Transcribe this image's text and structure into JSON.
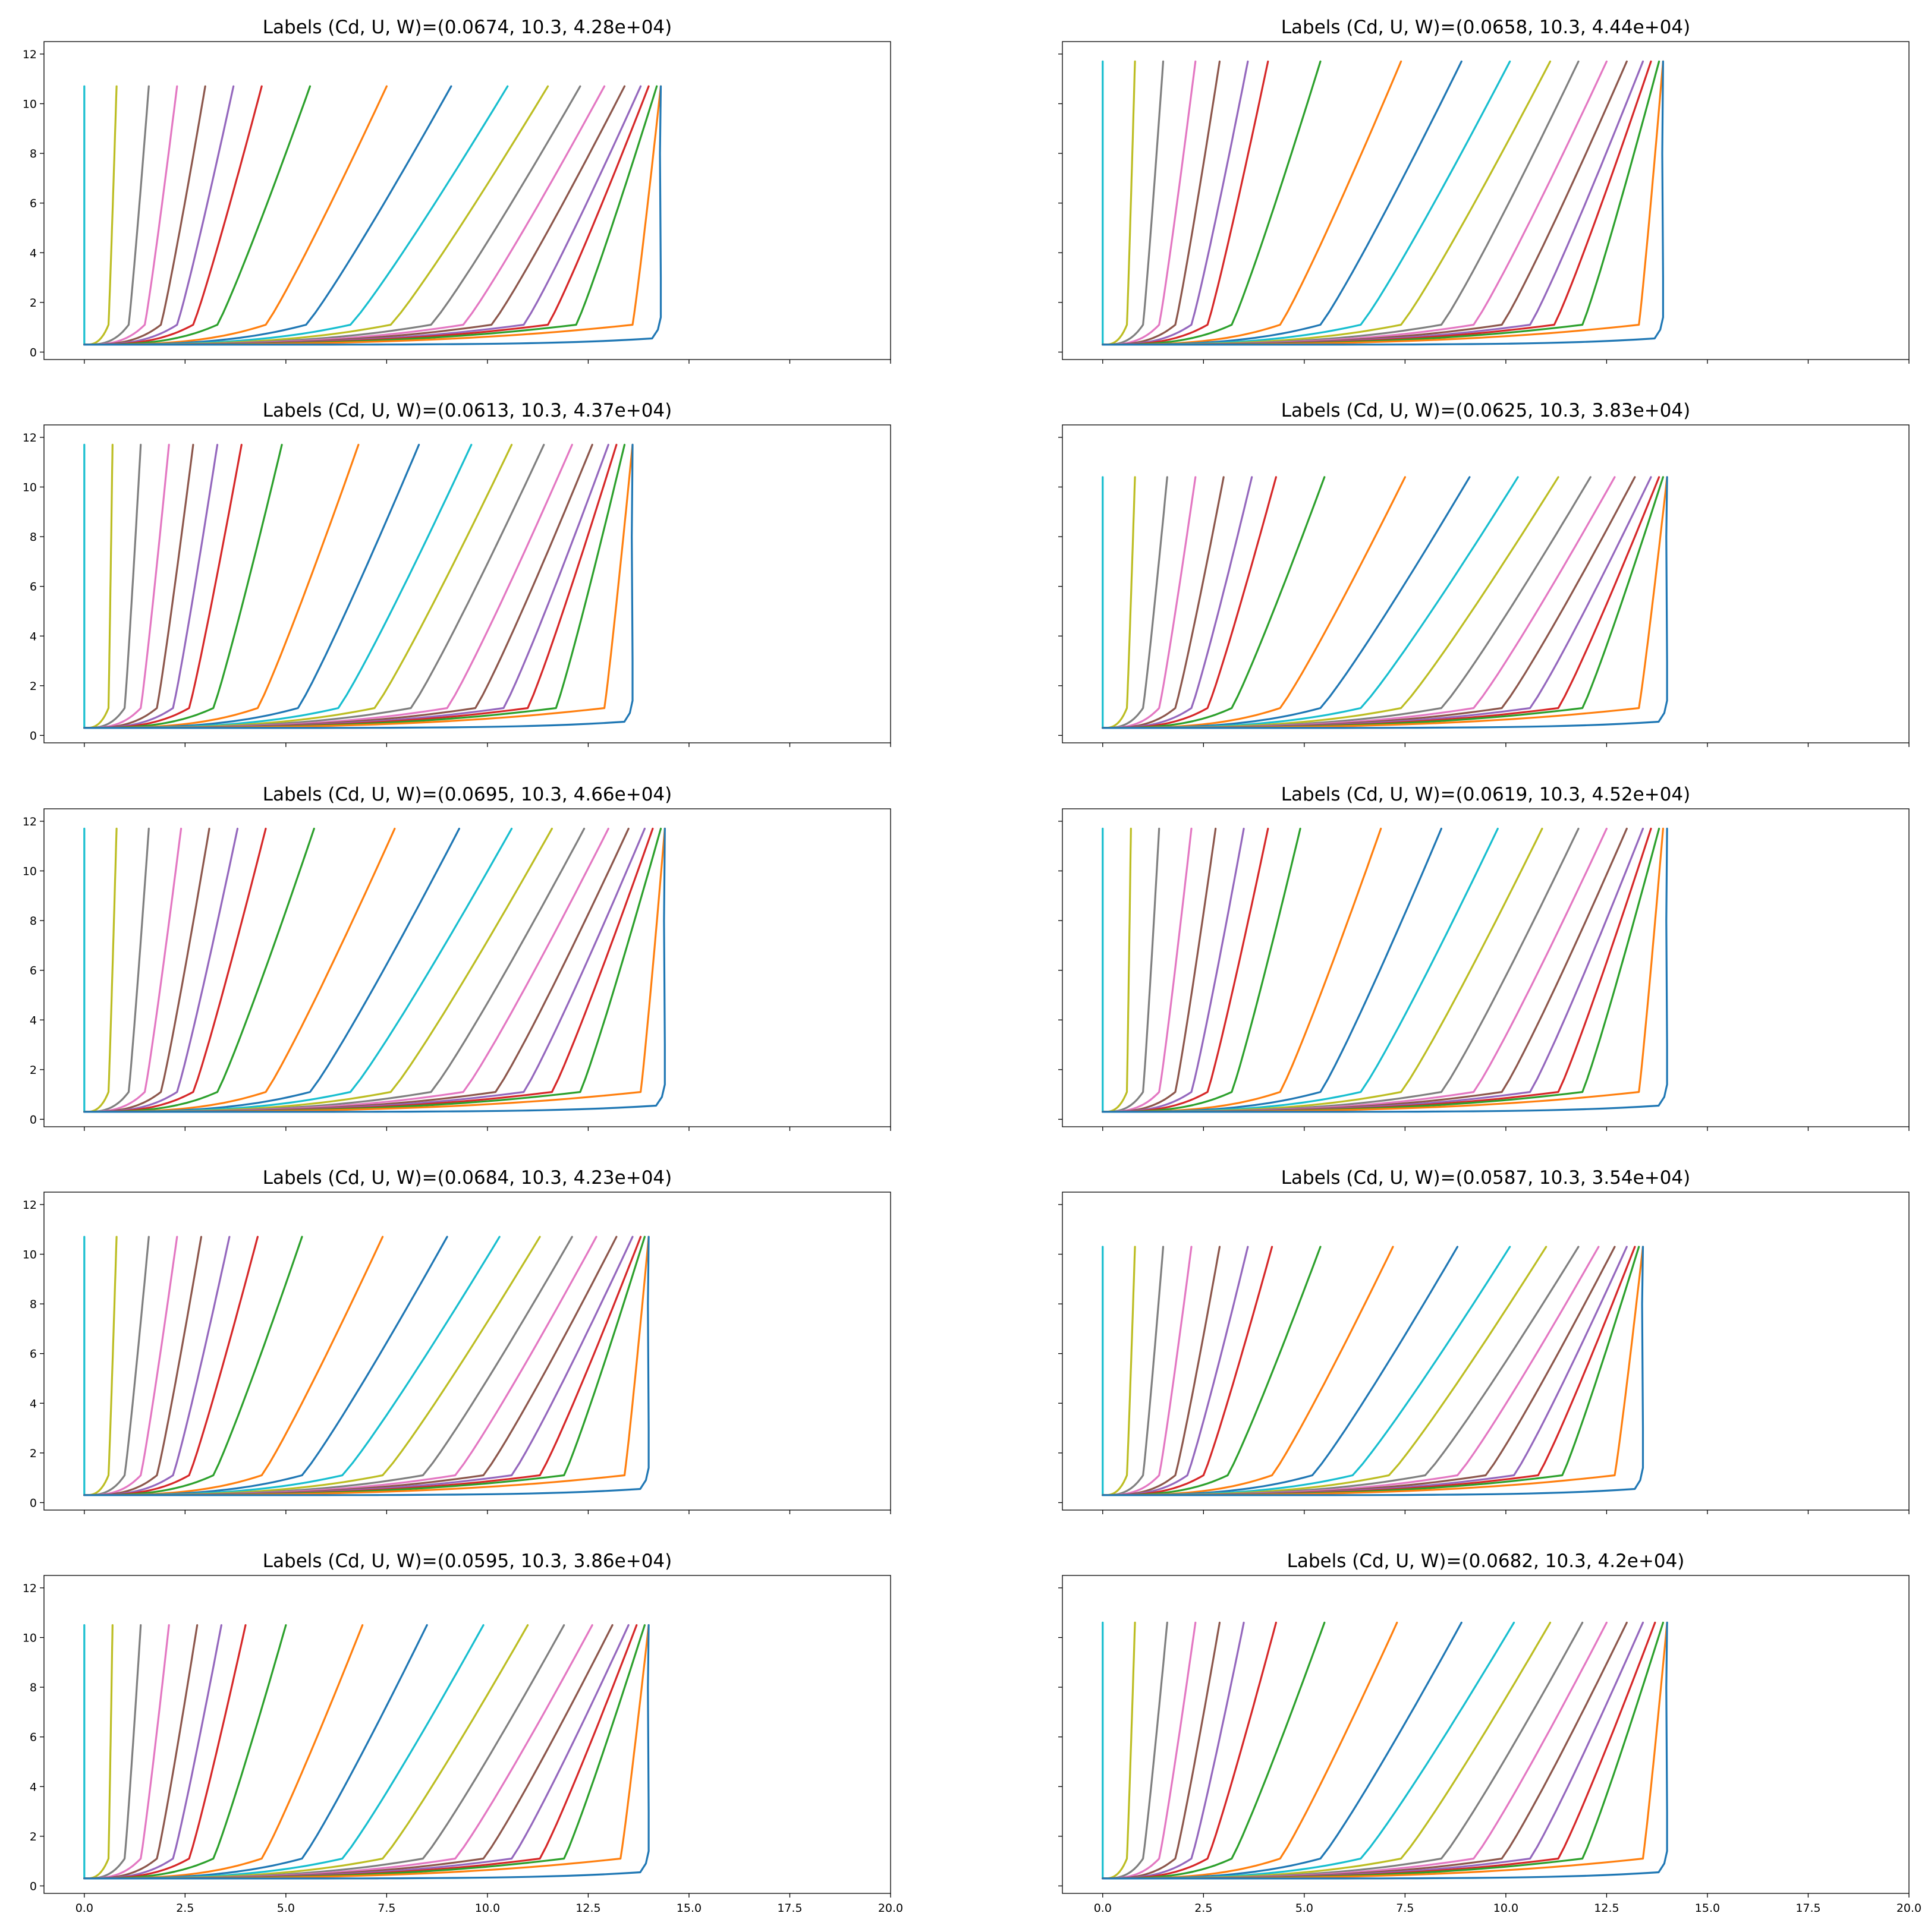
{
  "figure": {
    "xlim": [
      -1,
      20
    ],
    "ylim": [
      -0.3,
      12.5
    ],
    "x_ticks": [
      "0.0",
      "2.5",
      "5.0",
      "7.5",
      "10.0",
      "12.5",
      "15.0",
      "17.5",
      "20.0"
    ],
    "y_ticks": [
      "0",
      "2",
      "4",
      "6",
      "8",
      "10",
      "12"
    ],
    "x_tick_labels_shown_on_bottom_row_only": true,
    "y_tick_labels_shown_on_left_column_only": true,
    "series_colors": [
      "#17becf",
      "#bcbd22",
      "#7f7f7f",
      "#e377c2",
      "#8c564b",
      "#9467bd",
      "#d62728",
      "#2ca02c",
      "#ff7f0e",
      "#1f77b4",
      "#17becf",
      "#bcbd22",
      "#7f7f7f",
      "#e377c2",
      "#8c564b",
      "#9467bd",
      "#d62728",
      "#2ca02c",
      "#ff7f0e",
      "#1f77b4"
    ]
  },
  "chart_data": [
    {
      "type": "line",
      "title": "Labels (Cd, U, W)=(0.0674, 10.3, 4.28e+04)",
      "top_y": 10.7,
      "max_x": 14.3,
      "knee_y": 1.1,
      "top_x": [
        0.0,
        0.8,
        1.6,
        2.3,
        3.0,
        3.7,
        4.4,
        5.6,
        7.5,
        9.1,
        10.5,
        11.5,
        12.3,
        12.9,
        13.4,
        13.8,
        14.0,
        14.2,
        14.3,
        14.3
      ],
      "bottom_x": [
        0.0,
        0.6,
        1.1,
        1.5,
        1.9,
        2.3,
        2.7,
        3.3,
        4.5,
        5.5,
        6.6,
        7.6,
        8.6,
        9.4,
        10.1,
        10.9,
        11.5,
        12.2,
        13.6,
        14.2
      ]
    },
    {
      "type": "line",
      "title": "Labels (Cd, U, W)=(0.0658, 10.3, 4.44e+04)",
      "top_y": 11.7,
      "max_x": 13.9,
      "knee_y": 1.1,
      "top_x": [
        0.0,
        0.8,
        1.5,
        2.3,
        2.9,
        3.6,
        4.1,
        5.4,
        7.4,
        8.9,
        10.1,
        11.1,
        11.8,
        12.5,
        13.0,
        13.4,
        13.6,
        13.8,
        13.9,
        13.9
      ],
      "bottom_x": [
        0.0,
        0.6,
        1.0,
        1.4,
        1.8,
        2.2,
        2.6,
        3.2,
        4.4,
        5.4,
        6.4,
        7.4,
        8.4,
        9.2,
        9.9,
        10.6,
        11.2,
        11.9,
        13.3,
        13.8
      ]
    },
    {
      "type": "line",
      "title": "Labels (Cd, U, W)=(0.0613, 10.3, 4.37e+04)",
      "top_y": 11.7,
      "max_x": 13.6,
      "knee_y": 1.1,
      "top_x": [
        0.0,
        0.7,
        1.4,
        2.1,
        2.7,
        3.3,
        3.9,
        4.9,
        6.8,
        8.3,
        9.6,
        10.6,
        11.4,
        12.1,
        12.6,
        13.0,
        13.2,
        13.4,
        13.6,
        13.6
      ],
      "bottom_x": [
        0.0,
        0.6,
        1.0,
        1.4,
        1.8,
        2.2,
        2.6,
        3.2,
        4.3,
        5.3,
        6.3,
        7.2,
        8.1,
        9.0,
        9.7,
        10.4,
        11.0,
        11.7,
        12.9,
        13.5
      ]
    },
    {
      "type": "line",
      "title": "Labels (Cd, U, W)=(0.0625, 10.3, 3.83e+04)",
      "top_y": 10.4,
      "max_x": 14.0,
      "knee_y": 1.1,
      "top_x": [
        0.0,
        0.8,
        1.6,
        2.3,
        3.0,
        3.7,
        4.3,
        5.5,
        7.5,
        9.1,
        10.3,
        11.3,
        12.1,
        12.7,
        13.2,
        13.6,
        13.8,
        13.9,
        14.0,
        14.0
      ],
      "bottom_x": [
        0.0,
        0.6,
        1.0,
        1.4,
        1.8,
        2.2,
        2.6,
        3.2,
        4.4,
        5.4,
        6.4,
        7.4,
        8.4,
        9.2,
        9.9,
        10.6,
        11.3,
        11.9,
        13.3,
        13.9
      ]
    },
    {
      "type": "line",
      "title": "Labels (Cd, U, W)=(0.0695, 10.3, 4.66e+04)",
      "top_y": 11.7,
      "max_x": 14.4,
      "knee_y": 1.1,
      "top_x": [
        0.0,
        0.8,
        1.6,
        2.4,
        3.1,
        3.8,
        4.5,
        5.7,
        7.7,
        9.3,
        10.6,
        11.6,
        12.4,
        13.0,
        13.5,
        13.9,
        14.1,
        14.3,
        14.4,
        14.4
      ],
      "bottom_x": [
        0.0,
        0.6,
        1.1,
        1.5,
        1.9,
        2.3,
        2.7,
        3.3,
        4.5,
        5.6,
        6.6,
        7.6,
        8.6,
        9.4,
        10.2,
        10.9,
        11.6,
        12.3,
        13.8,
        14.3
      ]
    },
    {
      "type": "line",
      "title": "Labels (Cd, U, W)=(0.0619, 10.3, 4.52e+04)",
      "top_y": 11.7,
      "max_x": 14.0,
      "knee_y": 1.1,
      "top_x": [
        0.0,
        0.7,
        1.4,
        2.2,
        2.8,
        3.5,
        4.1,
        4.9,
        6.9,
        8.4,
        9.8,
        10.9,
        11.8,
        12.5,
        13.0,
        13.4,
        13.6,
        13.8,
        13.9,
        14.0
      ],
      "bottom_x": [
        0.0,
        0.6,
        1.0,
        1.4,
        1.8,
        2.2,
        2.6,
        3.2,
        4.4,
        5.4,
        6.4,
        7.4,
        8.4,
        9.2,
        9.9,
        10.6,
        11.3,
        11.9,
        13.3,
        13.9
      ]
    },
    {
      "type": "line",
      "title": "Labels (Cd, U, W)=(0.0684, 10.3, 4.23e+04)",
      "top_y": 10.7,
      "max_x": 14.0,
      "knee_y": 1.1,
      "top_x": [
        0.0,
        0.8,
        1.6,
        2.3,
        2.9,
        3.6,
        4.3,
        5.4,
        7.4,
        9.0,
        10.3,
        11.3,
        12.1,
        12.7,
        13.2,
        13.6,
        13.8,
        13.9,
        14.0,
        14.0
      ],
      "bottom_x": [
        0.0,
        0.6,
        1.0,
        1.4,
        1.8,
        2.2,
        2.6,
        3.2,
        4.4,
        5.4,
        6.4,
        7.4,
        8.4,
        9.2,
        9.9,
        10.6,
        11.3,
        11.9,
        13.4,
        13.9
      ]
    },
    {
      "type": "line",
      "title": "Labels (Cd, U, W)=(0.0587, 10.3, 3.54e+04)",
      "top_y": 10.3,
      "max_x": 13.4,
      "knee_y": 1.1,
      "top_x": [
        0.0,
        0.8,
        1.5,
        2.2,
        2.9,
        3.6,
        4.2,
        5.4,
        7.2,
        8.8,
        10.1,
        11.0,
        11.8,
        12.3,
        12.7,
        13.0,
        13.2,
        13.3,
        13.4,
        13.4
      ],
      "bottom_x": [
        0.0,
        0.6,
        1.0,
        1.4,
        1.8,
        2.1,
        2.5,
        3.1,
        4.2,
        5.2,
        6.2,
        7.1,
        8.0,
        8.8,
        9.5,
        10.2,
        10.8,
        11.4,
        12.7,
        13.3
      ]
    },
    {
      "type": "line",
      "title": "Labels (Cd, U, W)=(0.0595, 10.3, 3.86e+04)",
      "top_y": 10.5,
      "max_x": 14.0,
      "knee_y": 1.1,
      "top_x": [
        0.0,
        0.7,
        1.4,
        2.1,
        2.8,
        3.4,
        4.0,
        5.0,
        6.9,
        8.5,
        9.9,
        11.0,
        11.9,
        12.6,
        13.1,
        13.5,
        13.7,
        13.9,
        14.0,
        14.0
      ],
      "bottom_x": [
        0.0,
        0.6,
        1.0,
        1.4,
        1.8,
        2.2,
        2.6,
        3.2,
        4.4,
        5.4,
        6.4,
        7.4,
        8.4,
        9.2,
        9.9,
        10.6,
        11.3,
        11.9,
        13.3,
        13.9
      ]
    },
    {
      "type": "line",
      "title": "Labels (Cd, U, W)=(0.0682, 10.3, 4.2e+04)",
      "top_y": 10.6,
      "max_x": 14.0,
      "knee_y": 1.1,
      "top_x": [
        0.0,
        0.8,
        1.6,
        2.3,
        2.9,
        3.5,
        4.3,
        5.5,
        7.3,
        8.9,
        10.2,
        11.1,
        11.9,
        12.5,
        13.0,
        13.4,
        13.7,
        13.9,
        14.0,
        14.0
      ],
      "bottom_x": [
        0.0,
        0.6,
        1.0,
        1.4,
        1.8,
        2.2,
        2.6,
        3.2,
        4.4,
        5.4,
        6.4,
        7.4,
        8.4,
        9.2,
        9.9,
        10.6,
        11.3,
        11.9,
        13.4,
        13.9
      ]
    }
  ]
}
